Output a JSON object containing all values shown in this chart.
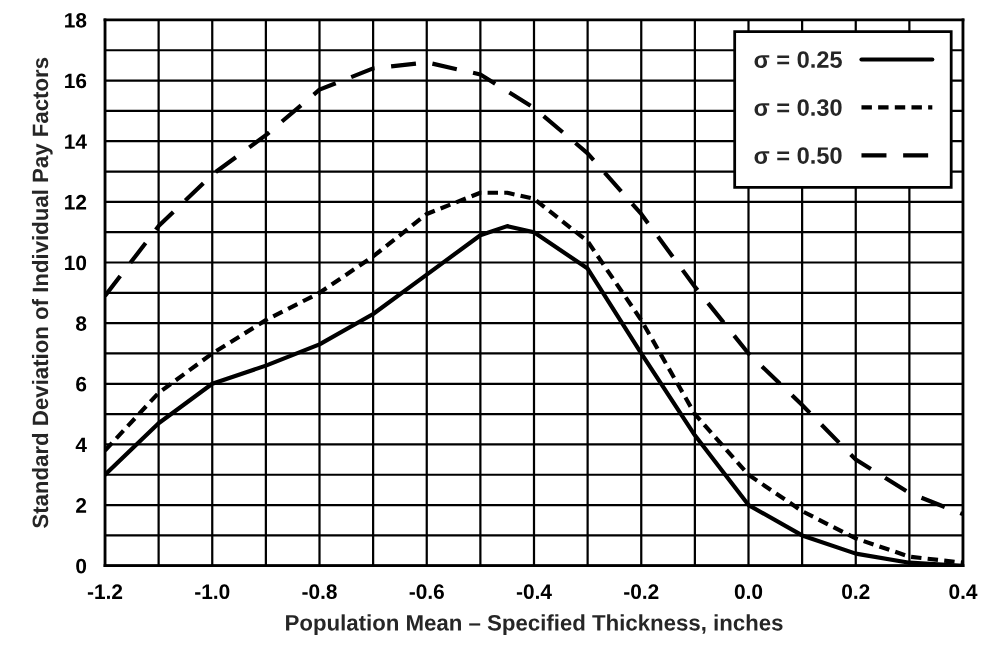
{
  "chart_data": {
    "type": "line",
    "xlabel": "Population Mean – Specified Thickness, inches",
    "ylabel": "Standard Deviation of Individual Pay Factors",
    "xlim": [
      -1.2,
      0.4
    ],
    "xticks": [
      {
        "value": -1.2,
        "label": "-1.2"
      },
      {
        "value": -1.1,
        "label": null
      },
      {
        "value": -1.0,
        "label": "-1.0"
      },
      {
        "value": -0.9,
        "label": null
      },
      {
        "value": -0.8,
        "label": "-0.8"
      },
      {
        "value": -0.7,
        "label": null
      },
      {
        "value": -0.6,
        "label": "-0.6"
      },
      {
        "value": -0.5,
        "label": null
      },
      {
        "value": -0.4,
        "label": "-0.4"
      },
      {
        "value": -0.3,
        "label": null
      },
      {
        "value": -0.2,
        "label": "-0.2"
      },
      {
        "value": -0.1,
        "label": null
      },
      {
        "value": 0.0,
        "label": "0.0"
      },
      {
        "value": 0.1,
        "label": null
      },
      {
        "value": 0.2,
        "label": "0.2"
      },
      {
        "value": 0.3,
        "label": null
      },
      {
        "value": 0.4,
        "label": "0.4"
      }
    ],
    "ylim": [
      0,
      18
    ],
    "yticks": [
      0,
      {
        "value": 1,
        "label": null
      },
      2,
      {
        "value": 3,
        "label": null
      },
      4,
      {
        "value": 5,
        "label": null
      },
      6,
      {
        "value": 7,
        "label": null
      },
      8,
      {
        "value": 9,
        "label": null
      },
      10,
      {
        "value": 11,
        "label": null
      },
      12,
      {
        "value": 13,
        "label": null
      },
      14,
      {
        "value": 15,
        "label": null
      },
      16,
      {
        "value": 17,
        "label": null
      },
      18
    ],
    "grid": true,
    "legend": "top right",
    "marker": "none",
    "series": [
      {
        "name": "σ = 0.25",
        "color": "#000000",
        "line_style": "solid",
        "x": [
          -1.2,
          -1.1,
          -1.0,
          -0.9,
          -0.8,
          -0.7,
          -0.6,
          -0.5,
          -0.45,
          -0.4,
          -0.3,
          -0.2,
          -0.1,
          0.0,
          0.1,
          0.2,
          0.3,
          0.4
        ],
        "values": [
          3.0,
          4.7,
          6.0,
          6.6,
          7.3,
          8.3,
          9.6,
          10.9,
          11.2,
          11.0,
          9.8,
          7.0,
          4.3,
          2.0,
          1.0,
          0.4,
          0.1,
          0.0
        ]
      },
      {
        "name": "σ = 0.30",
        "color": "#000000",
        "line_style": "dotted",
        "x": [
          -1.2,
          -1.1,
          -1.0,
          -0.9,
          -0.8,
          -0.7,
          -0.6,
          -0.5,
          -0.45,
          -0.4,
          -0.3,
          -0.2,
          -0.1,
          0.0,
          0.1,
          0.2,
          0.3,
          0.4
        ],
        "values": [
          3.8,
          5.7,
          7.0,
          8.1,
          9.0,
          10.2,
          11.6,
          12.3,
          12.3,
          12.1,
          10.7,
          8.1,
          5.0,
          3.0,
          1.8,
          0.9,
          0.3,
          0.1
        ]
      },
      {
        "name": "σ = 0.50",
        "color": "#000000",
        "line_style": "dashed",
        "x": [
          -1.2,
          -1.1,
          -1.0,
          -0.9,
          -0.8,
          -0.7,
          -0.6,
          -0.5,
          -0.4,
          -0.3,
          -0.2,
          -0.1,
          0.0,
          0.1,
          0.2,
          0.3,
          0.4
        ],
        "values": [
          8.9,
          11.2,
          12.9,
          14.2,
          15.7,
          16.4,
          16.6,
          16.2,
          15.1,
          13.6,
          11.6,
          9.2,
          7.0,
          5.3,
          3.5,
          2.4,
          1.7
        ]
      }
    ]
  }
}
